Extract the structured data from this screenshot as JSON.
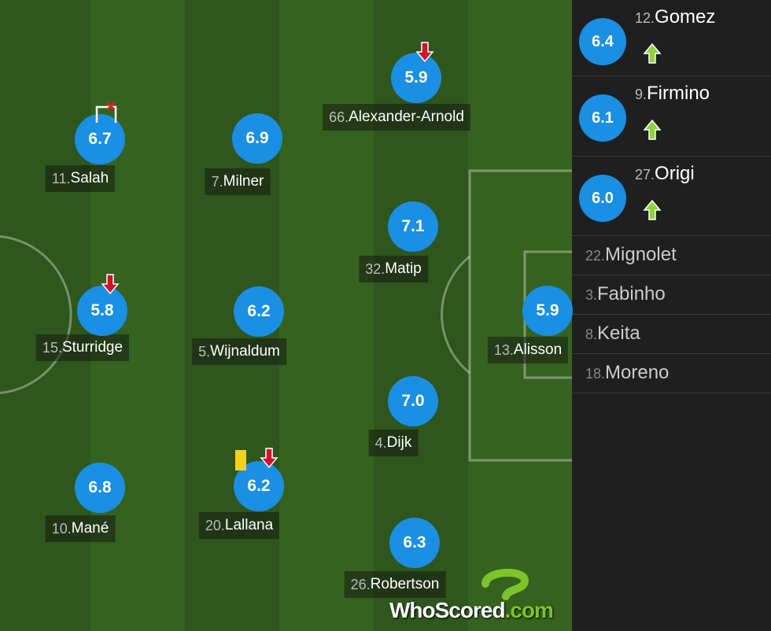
{
  "pitch": {
    "players": [
      {
        "number": "11.",
        "name": "Salah",
        "rating": "6.7"
      },
      {
        "number": "7.",
        "name": "Milner",
        "rating": "6.9"
      },
      {
        "number": "66.",
        "name": "Alexander-Arnold",
        "rating": "5.9"
      },
      {
        "number": "32.",
        "name": "Matip",
        "rating": "7.1"
      },
      {
        "number": "15.",
        "name": "Sturridge",
        "rating": "5.8"
      },
      {
        "number": "5.",
        "name": "Wijnaldum",
        "rating": "6.2"
      },
      {
        "number": "13.",
        "name": "Alisson",
        "rating": "5.9"
      },
      {
        "number": "4.",
        "name": "Dijk",
        "rating": "7.0"
      },
      {
        "number": "10.",
        "name": "Mané",
        "rating": "6.8"
      },
      {
        "number": "20.",
        "name": "Lallana",
        "rating": "6.2"
      },
      {
        "number": "26.",
        "name": "Robertson",
        "rating": "6.3"
      }
    ]
  },
  "substitutes": {
    "used": [
      {
        "number": "12.",
        "name": "Gomez",
        "rating": "6.4"
      },
      {
        "number": "9.",
        "name": "Firmino",
        "rating": "6.1"
      },
      {
        "number": "27.",
        "name": "Origi",
        "rating": "6.0"
      }
    ],
    "unused": [
      {
        "number": "22.",
        "name": "Mignolet"
      },
      {
        "number": "3.",
        "name": "Fabinho"
      },
      {
        "number": "8.",
        "name": "Keita"
      },
      {
        "number": "18.",
        "name": "Moreno"
      }
    ]
  },
  "logo": {
    "brand": "WhoScored",
    "suffix": ".com"
  }
}
